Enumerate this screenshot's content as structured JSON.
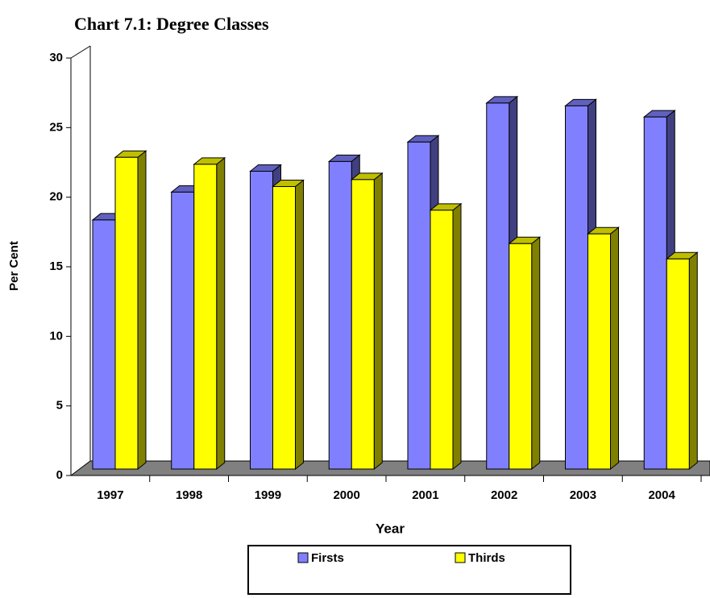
{
  "chart_data": {
    "type": "bar3d",
    "title": "Chart 7.1: Degree Classes",
    "x_label": "Year",
    "y_label": "Per Cent",
    "categories": [
      "1997",
      "1998",
      "1999",
      "2000",
      "2001",
      "2002",
      "2003",
      "2004"
    ],
    "series": [
      {
        "name": "Firsts",
        "color": "#8080ff",
        "values": [
          17.9,
          19.9,
          21.4,
          22.1,
          23.5,
          26.3,
          26.1,
          25.3
        ]
      },
      {
        "name": "Thirds",
        "color": "#ffff00",
        "values": [
          22.4,
          21.9,
          20.3,
          20.8,
          18.6,
          16.2,
          16.9,
          15.1
        ]
      }
    ],
    "ylim": [
      0,
      30
    ],
    "yticks": [
      0,
      5,
      10,
      15,
      20,
      25,
      30
    ],
    "legend": "bottom"
  }
}
